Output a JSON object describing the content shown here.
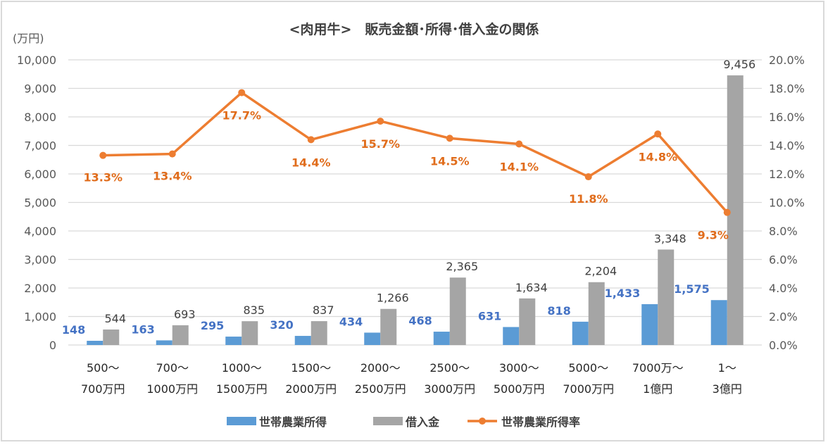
{
  "chart_data": {
    "type": "bar+line",
    "title": "<肉用牛>　販売金額･所得･借入金の関係",
    "y_unit_label": "(万円)",
    "categories": [
      [
        "500～",
        "700万円"
      ],
      [
        "700～",
        "1000万円"
      ],
      [
        "1000～",
        "1500万円"
      ],
      [
        "1500～",
        "2000万円"
      ],
      [
        "2000～",
        "2500万円"
      ],
      [
        "2500～",
        "3000万円"
      ],
      [
        "3000～",
        "5000万円"
      ],
      [
        "5000～",
        "7000万円"
      ],
      [
        "7000万～",
        "1億円"
      ],
      [
        "1～",
        "3億円"
      ]
    ],
    "ylim": [
      0,
      10000
    ],
    "y2lim": [
      0,
      20
    ],
    "yticks": [
      "0",
      "1,000",
      "2,000",
      "3,000",
      "4,000",
      "5,000",
      "6,000",
      "7,000",
      "8,000",
      "9,000",
      "10,000"
    ],
    "y2ticks": [
      "0.0%",
      "2.0%",
      "4.0%",
      "6.0%",
      "8.0%",
      "10.0%",
      "12.0%",
      "14.0%",
      "16.0%",
      "18.0%",
      "20.0%"
    ],
    "series": [
      {
        "name": "世帯農業所得",
        "type": "bar",
        "color": "#5b9bd5",
        "values": [
          148,
          163,
          295,
          320,
          434,
          468,
          631,
          818,
          1433,
          1575
        ],
        "labels": [
          "148",
          "163",
          "295",
          "320",
          "434",
          "468",
          "631",
          "818",
          "1,433",
          "1,575"
        ]
      },
      {
        "name": "借入金",
        "type": "bar",
        "color": "#a5a5a5",
        "values": [
          544,
          693,
          835,
          837,
          1266,
          2365,
          1634,
          2204,
          3348,
          9456
        ],
        "labels": [
          "544",
          "693",
          "835",
          "837",
          "1,266",
          "2,365",
          "1,634",
          "2,204",
          "3,348",
          "9,456"
        ]
      },
      {
        "name": "世帯農業所得率",
        "type": "line",
        "axis": "right",
        "color": "#ed7d31",
        "values": [
          13.3,
          13.4,
          17.7,
          14.4,
          15.7,
          14.5,
          14.1,
          11.8,
          14.8,
          9.3
        ],
        "labels": [
          "13.3%",
          "13.4%",
          "17.7%",
          "14.4%",
          "15.7%",
          "14.5%",
          "14.1%",
          "11.8%",
          "14.8%",
          "9.3%"
        ]
      }
    ],
    "grid": true,
    "legend": "bottom"
  }
}
